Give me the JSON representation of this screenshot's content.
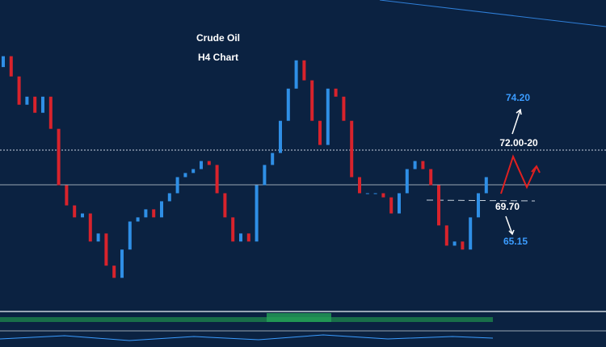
{
  "chart_data": {
    "type": "candlestick",
    "title": "Crude Oil",
    "subtitle": "H4  Chart",
    "ylim": [
      64.6,
      77.4
    ],
    "up_color": "#2f8fe6",
    "down_color": "#d8232c",
    "open": [
      75.8,
      76.3,
      75.37,
      74.07,
      74.44,
      73.7,
      74.44,
      72.96,
      70.37,
      69.44,
      68.89,
      69.07,
      67.78,
      68.15,
      66.67,
      66.11,
      67.41,
      68.7,
      68.89,
      69.26,
      68.89,
      69.63,
      70.0,
      70.74,
      70.93,
      71.11,
      71.48,
      71.3,
      70.0,
      68.89,
      67.78,
      68.15,
      67.78,
      70.37,
      71.3,
      71.85,
      73.33,
      74.81,
      76.11,
      75.19,
      73.33,
      72.22,
      74.81,
      74.44,
      73.33,
      70.74,
      70.0,
      70.0,
      70.0,
      69.81,
      69.07,
      70.0,
      71.11,
      71.48,
      71.11,
      70.37,
      68.52,
      67.59,
      67.78,
      67.41,
      68.89,
      70.0
    ],
    "close": [
      76.3,
      75.37,
      74.07,
      74.44,
      73.7,
      74.44,
      72.96,
      70.37,
      69.44,
      68.89,
      69.07,
      67.78,
      68.15,
      66.67,
      66.11,
      67.41,
      68.7,
      68.89,
      69.26,
      68.89,
      69.63,
      70.0,
      70.74,
      70.93,
      71.11,
      71.48,
      71.3,
      70.0,
      68.89,
      67.78,
      68.15,
      67.78,
      70.37,
      71.3,
      71.85,
      73.33,
      74.81,
      76.11,
      75.19,
      73.33,
      72.22,
      74.81,
      74.44,
      73.33,
      70.74,
      70.0,
      70.0,
      70.0,
      69.81,
      69.07,
      70.0,
      71.11,
      71.48,
      71.11,
      70.37,
      68.52,
      67.59,
      67.78,
      67.41,
      68.89,
      70.0,
      70.74
    ],
    "annotations": [
      "74.20",
      "72.00-20",
      "69.70",
      "65.15"
    ]
  }
}
